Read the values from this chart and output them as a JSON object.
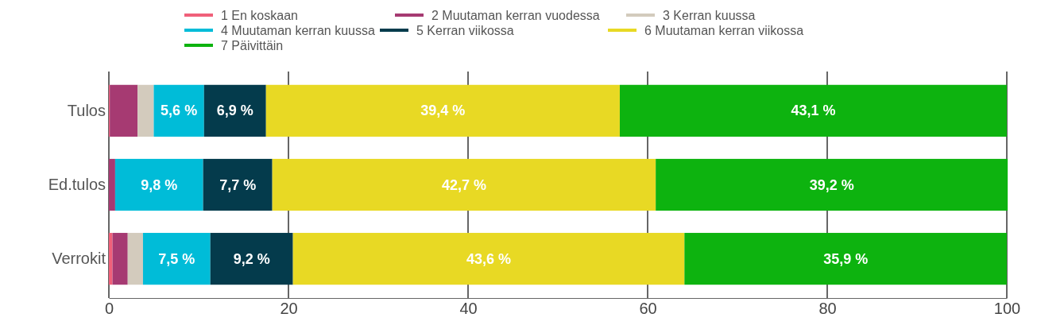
{
  "chart_data": {
    "type": "bar",
    "orientation": "horizontal",
    "stacked": true,
    "categories": [
      "Tulos",
      "Ed.tulos",
      "Verrokit"
    ],
    "series": [
      {
        "name": "1 En koskaan",
        "color": "#f0607a",
        "values": [
          0.1,
          0,
          0.4
        ],
        "value_labels": [
          null,
          null,
          null
        ]
      },
      {
        "name": "2 Muutaman kerran vuodessa",
        "color": "#a63a72",
        "values": [
          3.1,
          0.7,
          1.7
        ],
        "value_labels": [
          null,
          null,
          null
        ]
      },
      {
        "name": "3 Kerran kuussa",
        "color": "#d3cbbd",
        "values": [
          1.8,
          0,
          1.7
        ],
        "value_labels": [
          null,
          null,
          null
        ]
      },
      {
        "name": "4 Muutaman kerran kuussa",
        "color": "#00bcd8",
        "values": [
          5.6,
          9.8,
          7.5
        ],
        "value_labels": [
          "5,6 %",
          "9,8 %",
          "7,5 %"
        ]
      },
      {
        "name": "5 Kerran viikossa",
        "color": "#043b4c",
        "values": [
          6.9,
          7.7,
          9.2
        ],
        "value_labels": [
          "6,9 %",
          "7,7 %",
          "9,2 %"
        ]
      },
      {
        "name": "6 Muutaman kerran viikossa",
        "color": "#e8d924",
        "values": [
          39.4,
          42.7,
          43.6
        ],
        "value_labels": [
          "39,4 %",
          "42,7 %",
          "43,6 %"
        ]
      },
      {
        "name": "7 Päivittäin",
        "color": "#0db30f",
        "values": [
          43.1,
          39.2,
          35.9
        ],
        "value_labels": [
          "43,1 %",
          "39,2 %",
          "35,9 %"
        ]
      }
    ],
    "xlim": [
      0,
      100
    ],
    "xticks": [
      0,
      20,
      40,
      60,
      80,
      100
    ],
    "grid": "x",
    "legend": "top"
  }
}
